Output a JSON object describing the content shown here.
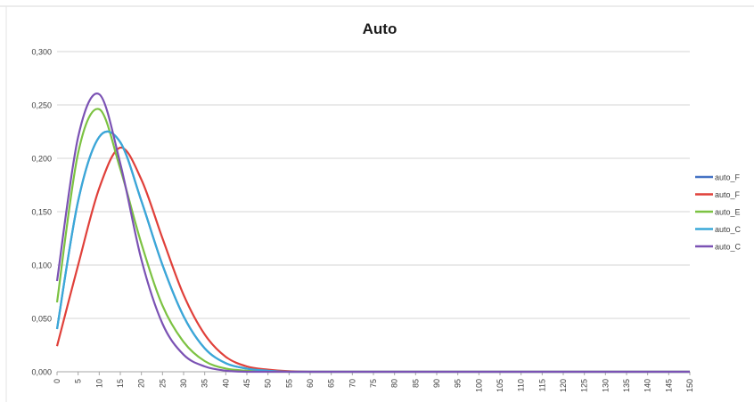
{
  "chart_data": {
    "type": "line",
    "title": "Auto",
    "xlabel": "",
    "ylabel": "",
    "ylim": [
      0,
      0.3
    ],
    "yticks": [
      "0,000",
      "0,050",
      "0,100",
      "0,150",
      "0,200",
      "0,250",
      "0,300"
    ],
    "yticks_values": [
      0,
      0.05,
      0.1,
      0.15,
      0.2,
      0.25,
      0.3
    ],
    "xlim": [
      0,
      150
    ],
    "xticks": [
      "0",
      "5",
      "10",
      "15",
      "20",
      "25",
      "30",
      "35",
      "40",
      "45",
      "50",
      "55",
      "60",
      "65",
      "70",
      "75",
      "80",
      "85",
      "90",
      "95",
      "100",
      "105",
      "110",
      "115",
      "120",
      "125",
      "130",
      "135",
      "140",
      "145",
      "150"
    ],
    "xticks_values": [
      0,
      5,
      10,
      15,
      20,
      25,
      30,
      35,
      40,
      45,
      50,
      55,
      60,
      65,
      70,
      75,
      80,
      85,
      90,
      95,
      100,
      105,
      110,
      115,
      120,
      125,
      130,
      135,
      140,
      145,
      150
    ],
    "grid": "horizontal",
    "legend_position": "right",
    "x": [
      0,
      5,
      10,
      15,
      20,
      25,
      30,
      35,
      40,
      45,
      50,
      55,
      60,
      65,
      70,
      75,
      80,
      85,
      90,
      95,
      100,
      105,
      110,
      115,
      120,
      125,
      130,
      135,
      140,
      145,
      150
    ],
    "series": [
      {
        "name": "auto_F",
        "color": "#4472c4",
        "values": [
          0.04,
          0.16,
          0.22,
          0.215,
          0.16,
          0.1,
          0.052,
          0.022,
          0.008,
          0.003,
          0.001,
          0,
          0,
          0,
          0,
          0,
          0,
          0,
          0,
          0,
          0,
          0,
          0,
          0,
          0,
          0,
          0,
          0,
          0,
          0,
          0
        ]
      },
      {
        "name": "auto_F",
        "color": "#e0403a",
        "values": [
          0.024,
          0.1,
          0.172,
          0.21,
          0.18,
          0.125,
          0.072,
          0.035,
          0.014,
          0.005,
          0.002,
          0.0005,
          0,
          0,
          0,
          0,
          0,
          0,
          0,
          0,
          0,
          0,
          0,
          0,
          0,
          0,
          0,
          0,
          0,
          0,
          0
        ]
      },
      {
        "name": "auto_E",
        "color": "#7cc242",
        "values": [
          0.065,
          0.205,
          0.246,
          0.19,
          0.12,
          0.062,
          0.028,
          0.01,
          0.003,
          0.001,
          0,
          0,
          0,
          0,
          0,
          0,
          0,
          0,
          0,
          0,
          0,
          0,
          0,
          0,
          0,
          0,
          0,
          0,
          0,
          0,
          0
        ]
      },
      {
        "name": "auto_C",
        "color": "#3aa8d8",
        "values": [
          0.04,
          0.16,
          0.22,
          0.215,
          0.16,
          0.1,
          0.052,
          0.022,
          0.008,
          0.003,
          0.001,
          0,
          0,
          0,
          0,
          0,
          0,
          0,
          0,
          0,
          0,
          0,
          0,
          0,
          0,
          0,
          0,
          0,
          0,
          0,
          0
        ]
      },
      {
        "name": "auto_C",
        "color": "#7b52b4",
        "values": [
          0.085,
          0.22,
          0.26,
          0.195,
          0.105,
          0.045,
          0.016,
          0.005,
          0.001,
          0,
          0,
          0,
          0,
          0,
          0,
          0,
          0,
          0,
          0,
          0,
          0,
          0,
          0,
          0,
          0,
          0,
          0,
          0,
          0,
          0,
          0
        ]
      }
    ]
  }
}
